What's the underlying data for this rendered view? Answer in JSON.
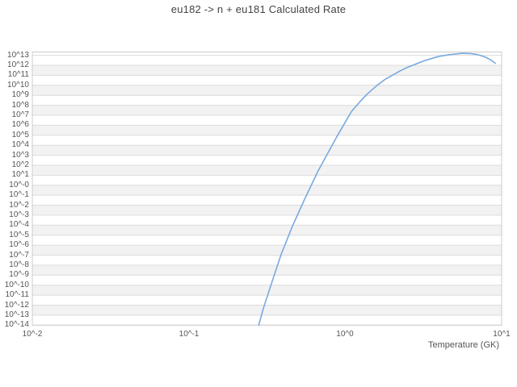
{
  "page": {
    "title": "eu182 -> n + eu181 Calculated Rate"
  },
  "chart_data": {
    "type": "line",
    "title": "eu182 -> n + eu181 Calculated Rate",
    "xlabel": "Temperature (GK)",
    "ylabel": "",
    "x_scale": "log",
    "y_scale": "log",
    "x_range_log10": [
      -2,
      1
    ],
    "y_range_log10": [
      -14,
      13.33
    ],
    "grid": "horizontal alternating stripes, no vertical gridlines",
    "legend": "none",
    "band_color": "#f2f2f2",
    "gridline_color": "#dcdcdc",
    "border_color": "#cccccc",
    "x_ticks": [
      {
        "log10": -2,
        "label": "10^-2"
      },
      {
        "log10": -1,
        "label": "10^-1"
      },
      {
        "log10": 0,
        "label": "10^0"
      },
      {
        "log10": 1,
        "label": "10^1"
      }
    ],
    "y_ticks": [
      {
        "log10": 13,
        "label": "10^13"
      },
      {
        "log10": 12,
        "label": "10^12"
      },
      {
        "log10": 11,
        "label": "10^11"
      },
      {
        "log10": 10,
        "label": "10^10"
      },
      {
        "log10": 9,
        "label": "10^9"
      },
      {
        "log10": 8,
        "label": "10^8"
      },
      {
        "log10": 7,
        "label": "10^7"
      },
      {
        "log10": 6,
        "label": "10^6"
      },
      {
        "log10": 5,
        "label": "10^5"
      },
      {
        "log10": 4,
        "label": "10^4"
      },
      {
        "log10": 3,
        "label": "10^3"
      },
      {
        "log10": 2,
        "label": "10^2"
      },
      {
        "log10": 1,
        "label": "10^1"
      },
      {
        "log10": 0,
        "label": "10^-0"
      },
      {
        "log10": -1,
        "label": "10^-1"
      },
      {
        "log10": -2,
        "label": "10^-2"
      },
      {
        "log10": -3,
        "label": "10^-3"
      },
      {
        "log10": -4,
        "label": "10^-4"
      },
      {
        "log10": -5,
        "label": "10^-5"
      },
      {
        "log10": -6,
        "label": "10^-6"
      },
      {
        "log10": -7,
        "label": "10^-7"
      },
      {
        "log10": -8,
        "label": "10^-8"
      },
      {
        "log10": -9,
        "label": "10^-9"
      },
      {
        "log10": -10,
        "label": "10^-10"
      },
      {
        "log10": -11,
        "label": "10^-11"
      },
      {
        "log10": -12,
        "label": "10^-12"
      },
      {
        "log10": -13,
        "label": "10^-13"
      },
      {
        "log10": -14,
        "label": "10^-14"
      }
    ],
    "series": [
      {
        "name": "Calculated Rate",
        "color": "#77aadd",
        "points_T_log10rate": [
          [
            0.28,
            -14.0
          ],
          [
            0.3,
            -12.3
          ],
          [
            0.34,
            -9.7
          ],
          [
            0.39,
            -6.9
          ],
          [
            0.46,
            -4.1
          ],
          [
            0.55,
            -1.4
          ],
          [
            0.67,
            1.4
          ],
          [
            0.76,
            3.0
          ],
          [
            0.88,
            4.8
          ],
          [
            1.0,
            6.3
          ],
          [
            1.1,
            7.4
          ],
          [
            1.25,
            8.4
          ],
          [
            1.4,
            9.2
          ],
          [
            1.6,
            10.0
          ],
          [
            1.8,
            10.6
          ],
          [
            2.0,
            11.0
          ],
          [
            2.25,
            11.45
          ],
          [
            2.5,
            11.8
          ],
          [
            2.8,
            12.1
          ],
          [
            3.2,
            12.45
          ],
          [
            3.6,
            12.7
          ],
          [
            4.0,
            12.9
          ],
          [
            4.8,
            13.1
          ],
          [
            5.6,
            13.2
          ],
          [
            6.3,
            13.18
          ],
          [
            6.9,
            13.1
          ],
          [
            7.8,
            12.85
          ],
          [
            8.5,
            12.55
          ],
          [
            9.1,
            12.2
          ]
        ]
      }
    ]
  }
}
